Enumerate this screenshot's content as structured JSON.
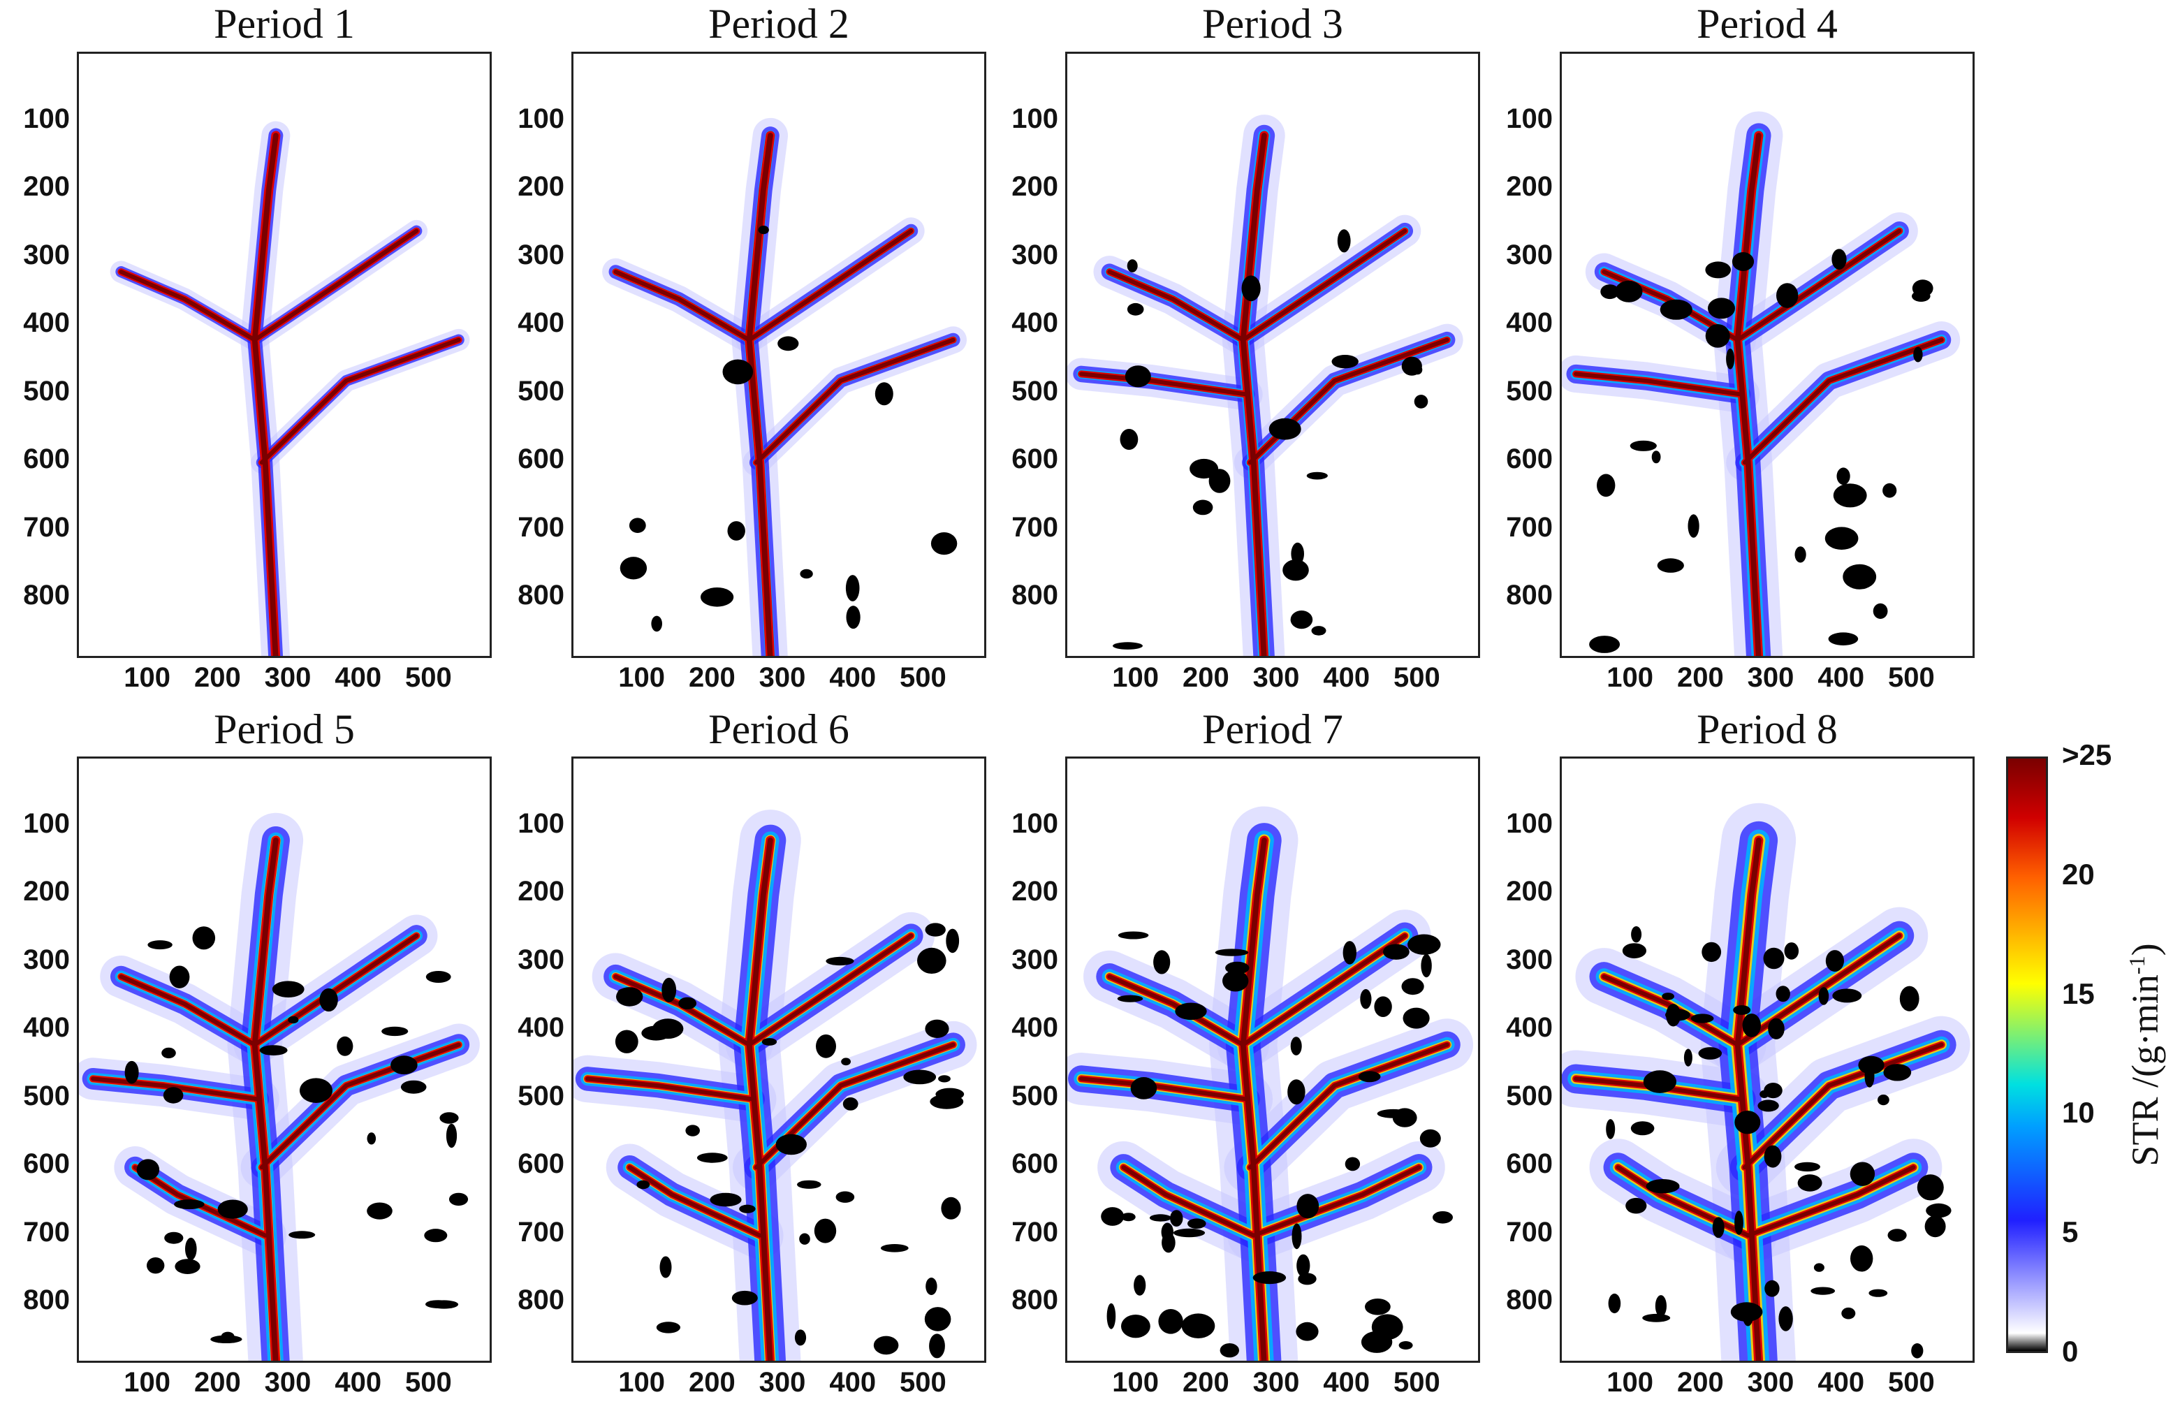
{
  "chart_data": {
    "type": "heatmap",
    "panels": [
      {
        "title": "Period 1"
      },
      {
        "title": "Period 2"
      },
      {
        "title": "Period 3"
      },
      {
        "title": "Period 4"
      },
      {
        "title": "Period 5"
      },
      {
        "title": "Period 6"
      },
      {
        "title": "Period 7"
      },
      {
        "title": "Period 8"
      }
    ],
    "x_ticks": [
      "100",
      "200",
      "300",
      "400",
      "500"
    ],
    "y_ticks": [
      "100",
      "200",
      "300",
      "400",
      "500",
      "600",
      "700",
      "800"
    ],
    "xlim": [
      0,
      590
    ],
    "ylim": [
      890,
      0
    ],
    "colorbar": {
      "label": "STR /(g·min⁻¹)",
      "label_text": "STR /(g·min",
      "label_sup": "-1",
      "label_close": ")",
      "ticks": [
        "0",
        "5",
        "10",
        "15",
        "20",
        ">25"
      ],
      "range": [
        0,
        25
      ],
      "colors": [
        "#000000",
        "#ffffff",
        "#2020ff",
        "#00a0ff",
        "#00e0e0",
        "#ffff00",
        "#ff6000",
        "#d00000",
        "#7a0000"
      ]
    }
  }
}
